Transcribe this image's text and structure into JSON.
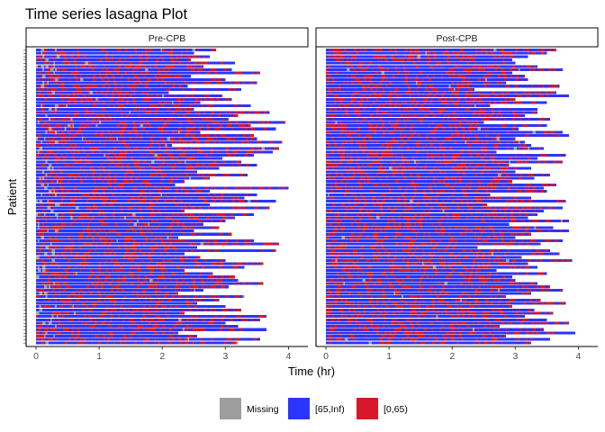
{
  "chart_data": {
    "type": "heatmap",
    "title": "Time series lasagna Plot",
    "xlabel": "Time (hr)",
    "ylabel": "Patient",
    "x_ticks": [
      0,
      1,
      2,
      3,
      4
    ],
    "xlim": [
      0,
      4.15
    ],
    "legend": {
      "position": "bottom",
      "entries": [
        {
          "label": "Missing",
          "color": "#9e9e9e"
        },
        {
          "label": "[65,Inf)",
          "color": "#2a35ff"
        },
        {
          "label": "[0,65)",
          "color": "#d7182a"
        }
      ]
    },
    "panels": [
      {
        "label": "Pre-CPB",
        "end_times": [
          2.85,
          2.5,
          2.75,
          2.45,
          3.15,
          2.65,
          3.1,
          3.55,
          2.45,
          3.0,
          3.5,
          2.4,
          3.25,
          2.1,
          2.95,
          3.1,
          2.6,
          3.4,
          2.5,
          3.7,
          3.2,
          3.05,
          3.95,
          3.4,
          3.8,
          2.6,
          3.45,
          3.5,
          3.9,
          2.15,
          3.85,
          3.75,
          3.45,
          2.95,
          3.25,
          3.5,
          2.9,
          2.55,
          3.35,
          2.75,
          2.35,
          2.2,
          4.0,
          2.75,
          3.5,
          3.3,
          3.8,
          2.75,
          3.7,
          2.35,
          3.45,
          3.15,
          3.0,
          2.65,
          2.9,
          2.5,
          3.1,
          2.25,
          3.45,
          3.85,
          2.55,
          3.8,
          2.35,
          2.6,
          3.0,
          3.6,
          3.3,
          2.35,
          2.8,
          3.15,
          3.2,
          3.6,
          3.05,
          2.65,
          2.25,
          3.3,
          2.9,
          2.55,
          3.0,
          3.25,
          2.35,
          3.65,
          3.55,
          3.0,
          3.2,
          3.65,
          2.25,
          2.55,
          3.55,
          3.2
        ]
      },
      {
        "label": "Post-CPB",
        "end_times": [
          3.65,
          3.5,
          3.2,
          2.95,
          3.0,
          3.35,
          3.75,
          2.95,
          3.15,
          3.2,
          2.85,
          3.7,
          2.35,
          3.65,
          3.85,
          3.0,
          3.5,
          2.6,
          3.35,
          3.35,
          3.15,
          3.55,
          2.5,
          3.5,
          3.05,
          3.75,
          3.85,
          3.0,
          3.15,
          3.25,
          3.45,
          2.7,
          3.8,
          3.35,
          3.75,
          2.9,
          3.25,
          3.0,
          3.55,
          3.3,
          2.95,
          3.65,
          3.45,
          3.5,
          2.6,
          3.25,
          3.8,
          2.55,
          3.75,
          3.45,
          3.35,
          3.2,
          3.85,
          2.9,
          3.6,
          3.85,
          3.25,
          3.0,
          3.75,
          3.4,
          2.4,
          3.55,
          3.7,
          3.1,
          3.9,
          3.2,
          3.35,
          2.7,
          3.5,
          2.95,
          3.0,
          3.35,
          3.55,
          3.75,
          3.25,
          2.85,
          3.4,
          3.8,
          2.95,
          3.3,
          3.6,
          3.15,
          3.5,
          3.85,
          2.75,
          3.45,
          3.95,
          2.85,
          3.55,
          3.25
        ]
      }
    ]
  }
}
